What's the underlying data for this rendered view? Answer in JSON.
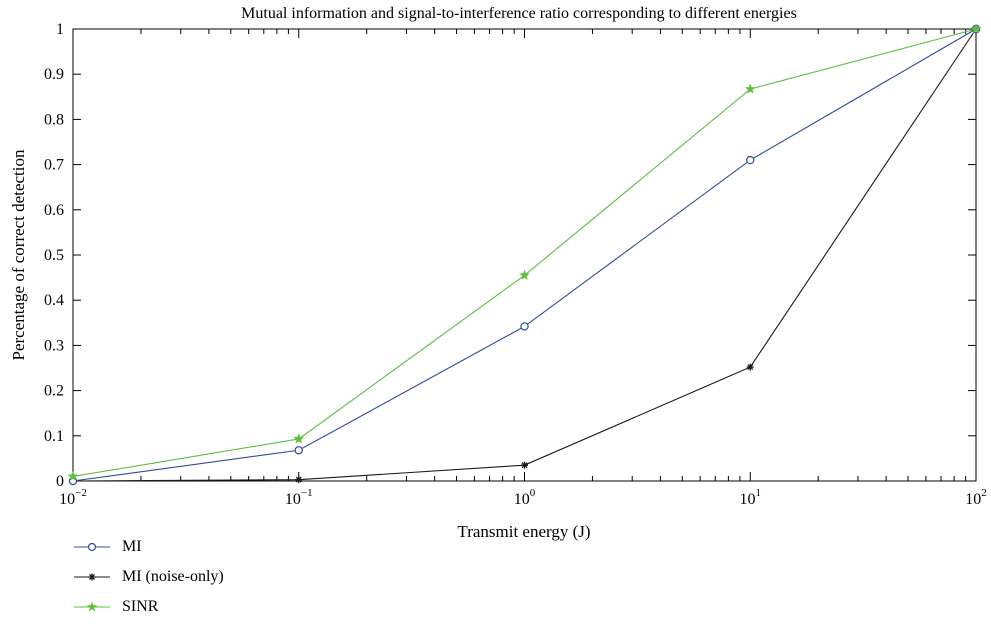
{
  "chart_data": {
    "type": "line",
    "title": "Mutual information and signal-to-interference ratio corresponding to different energies",
    "xlabel": "Transmit energy (J)",
    "ylabel": "Percentage of correct detection",
    "x_scale": "log",
    "xlim": [
      0.01,
      100
    ],
    "ylim": [
      0,
      1
    ],
    "x": [
      0.01,
      0.1,
      1,
      10,
      100
    ],
    "x_ticks": [
      {
        "base": "10",
        "exp": "−2"
      },
      {
        "base": "10",
        "exp": "−1"
      },
      {
        "base": "10",
        "exp": "0"
      },
      {
        "base": "10",
        "exp": "1"
      },
      {
        "base": "10",
        "exp": "2"
      }
    ],
    "y_ticks": [
      "0",
      "0.1",
      "0.2",
      "0.3",
      "0.4",
      "0.5",
      "0.6",
      "0.7",
      "0.8",
      "0.9",
      "1"
    ],
    "grid": false,
    "legend_position": "bottom-left, below axes",
    "series": [
      {
        "name": "MI",
        "values": [
          0.0,
          0.068,
          0.342,
          0.71,
          1.0
        ],
        "color": "#2e4a9e",
        "marker": "circle"
      },
      {
        "name": "MI (noise-only)",
        "values": [
          0.0,
          0.003,
          0.035,
          0.252,
          1.0
        ],
        "color": "#1a1a1a",
        "marker": "asterisk"
      },
      {
        "name": "SINR",
        "values": [
          0.01,
          0.093,
          0.455,
          0.867,
          1.0
        ],
        "color": "#5cbf3f",
        "marker": "star"
      }
    ]
  }
}
